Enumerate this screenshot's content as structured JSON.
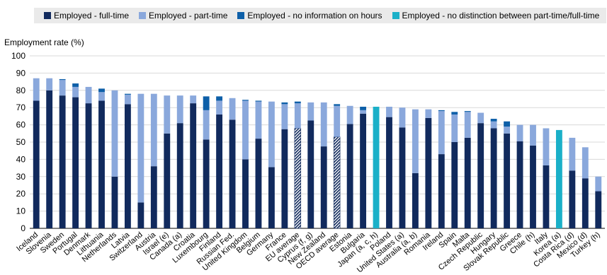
{
  "chart_data": {
    "type": "bar",
    "ylabel": "Employment rate (%)",
    "ylim": [
      0,
      100
    ],
    "yticks": [
      0,
      10,
      20,
      30,
      40,
      50,
      60,
      70,
      80,
      90,
      100
    ],
    "grid": true,
    "legend_position": "top",
    "colors": {
      "full_time": "#112a5d",
      "part_time": "#8aa8dc",
      "no_info": "#0d5fa8",
      "no_distinction": "#1bb0c8",
      "average_hatch": "#112a5d"
    },
    "series": [
      {
        "key": "full_time",
        "name": "Employed - full-time"
      },
      {
        "key": "part_time",
        "name": "Employed - part-time"
      },
      {
        "key": "no_info",
        "name": "Employed - no information on hours"
      },
      {
        "key": "no_distinction",
        "name": "Employed - no distinction between part-time/full-time"
      }
    ],
    "countries": [
      {
        "label": "Iceland",
        "ft": 74,
        "pt": 13,
        "ni": 0,
        "nd": 0
      },
      {
        "label": "Slovenia",
        "ft": 80,
        "pt": 7,
        "ni": 0,
        "nd": 0
      },
      {
        "label": "Sweden",
        "ft": 77,
        "pt": 9,
        "ni": 0.5,
        "nd": 0
      },
      {
        "label": "Portugal",
        "ft": 76,
        "pt": 6,
        "ni": 2,
        "nd": 0
      },
      {
        "label": "Denmark",
        "ft": 72.5,
        "pt": 9.5,
        "ni": 0,
        "nd": 0
      },
      {
        "label": "Lithuania",
        "ft": 74,
        "pt": 5,
        "ni": 2,
        "nd": 0
      },
      {
        "label": "Netherlands",
        "ft": 30,
        "pt": 50,
        "ni": 0,
        "nd": 0
      },
      {
        "label": "Latvia",
        "ft": 72,
        "pt": 5.5,
        "ni": 0.5,
        "nd": 0
      },
      {
        "label": "Switzerland",
        "ft": 15,
        "pt": 63,
        "ni": 0,
        "nd": 0
      },
      {
        "label": "Austria",
        "ft": 36,
        "pt": 42,
        "ni": 0,
        "nd": 0
      },
      {
        "label": "Israel (e)",
        "ft": 55,
        "pt": 22,
        "ni": 0,
        "nd": 0
      },
      {
        "label": "Canada (a)",
        "ft": 61,
        "pt": 16,
        "ni": 0,
        "nd": 0
      },
      {
        "label": "Croatia",
        "ft": 72.5,
        "pt": 4.5,
        "ni": 0,
        "nd": 0
      },
      {
        "label": "Luxembourg",
        "ft": 51.5,
        "pt": 17,
        "ni": 8,
        "nd": 0
      },
      {
        "label": "Finland",
        "ft": 66,
        "pt": 8,
        "ni": 2.5,
        "nd": 0
      },
      {
        "label": "Russian Fed.",
        "ft": 63,
        "pt": 12.5,
        "ni": 0,
        "nd": 0
      },
      {
        "label": "United Kingdom",
        "ft": 40,
        "pt": 34,
        "ni": 0.5,
        "nd": 0
      },
      {
        "label": "Belgium",
        "ft": 52,
        "pt": 21.5,
        "ni": 0.5,
        "nd": 0
      },
      {
        "label": "Germany",
        "ft": 35.5,
        "pt": 38,
        "ni": 0,
        "nd": 0
      },
      {
        "label": "France",
        "ft": 57.5,
        "pt": 14.5,
        "ni": 1,
        "nd": 0
      },
      {
        "label": "EU average",
        "ft": 58,
        "pt": 14.5,
        "ni": 1,
        "nd": 0,
        "avg": true
      },
      {
        "label": "Cyprus (f, g)",
        "ft": 62.5,
        "pt": 10.5,
        "ni": 0,
        "nd": 0
      },
      {
        "label": "New Zealand",
        "ft": 47.5,
        "pt": 25.5,
        "ni": 0,
        "nd": 0
      },
      {
        "label": "OECD average",
        "ft": 53,
        "pt": 18,
        "ni": 1,
        "nd": 0,
        "avg": true
      },
      {
        "label": "Estonia",
        "ft": 60.5,
        "pt": 10.5,
        "ni": 0,
        "nd": 0
      },
      {
        "label": "Bulgaria",
        "ft": 66.5,
        "pt": 2,
        "ni": 2,
        "nd": 0
      },
      {
        "label": "Japan (a, c, h)",
        "ft": 0,
        "pt": 0,
        "ni": 0,
        "nd": 70.5
      },
      {
        "label": "Poland",
        "ft": 64.5,
        "pt": 6,
        "ni": 0,
        "nd": 0
      },
      {
        "label": "United States (a)",
        "ft": 58.5,
        "pt": 11.5,
        "ni": 0,
        "nd": 0
      },
      {
        "label": "Australia (a, b)",
        "ft": 32,
        "pt": 37,
        "ni": 0,
        "nd": 0
      },
      {
        "label": "Romania",
        "ft": 64,
        "pt": 5,
        "ni": 0,
        "nd": 0
      },
      {
        "label": "Ireland",
        "ft": 43,
        "pt": 25,
        "ni": 0.5,
        "nd": 0
      },
      {
        "label": "Spain",
        "ft": 50,
        "pt": 16,
        "ni": 1.5,
        "nd": 0
      },
      {
        "label": "Malta",
        "ft": 52.5,
        "pt": 15,
        "ni": 0.5,
        "nd": 0
      },
      {
        "label": "Czech Republic",
        "ft": 61,
        "pt": 6,
        "ni": 0,
        "nd": 0
      },
      {
        "label": "Hungary",
        "ft": 58,
        "pt": 4,
        "ni": 1.5,
        "nd": 0
      },
      {
        "label": "Slovak Republic",
        "ft": 55,
        "pt": 4,
        "ni": 3,
        "nd": 0
      },
      {
        "label": "Greece",
        "ft": 50.5,
        "pt": 9.5,
        "ni": 0,
        "nd": 0
      },
      {
        "label": "Chile (h)",
        "ft": 48,
        "pt": 12,
        "ni": 0,
        "nd": 0
      },
      {
        "label": "Italy",
        "ft": 36.5,
        "pt": 21.5,
        "ni": 0,
        "nd": 0
      },
      {
        "label": "Korea (a)",
        "ft": 0,
        "pt": 0,
        "ni": 0,
        "nd": 57
      },
      {
        "label": "Costa Rica (d)",
        "ft": 33.5,
        "pt": 19,
        "ni": 0,
        "nd": 0
      },
      {
        "label": "Mexico (d)",
        "ft": 29,
        "pt": 18,
        "ni": 0,
        "nd": 0
      },
      {
        "label": "Turkey (h)",
        "ft": 21.5,
        "pt": 8.5,
        "ni": 0,
        "nd": 0
      }
    ]
  }
}
